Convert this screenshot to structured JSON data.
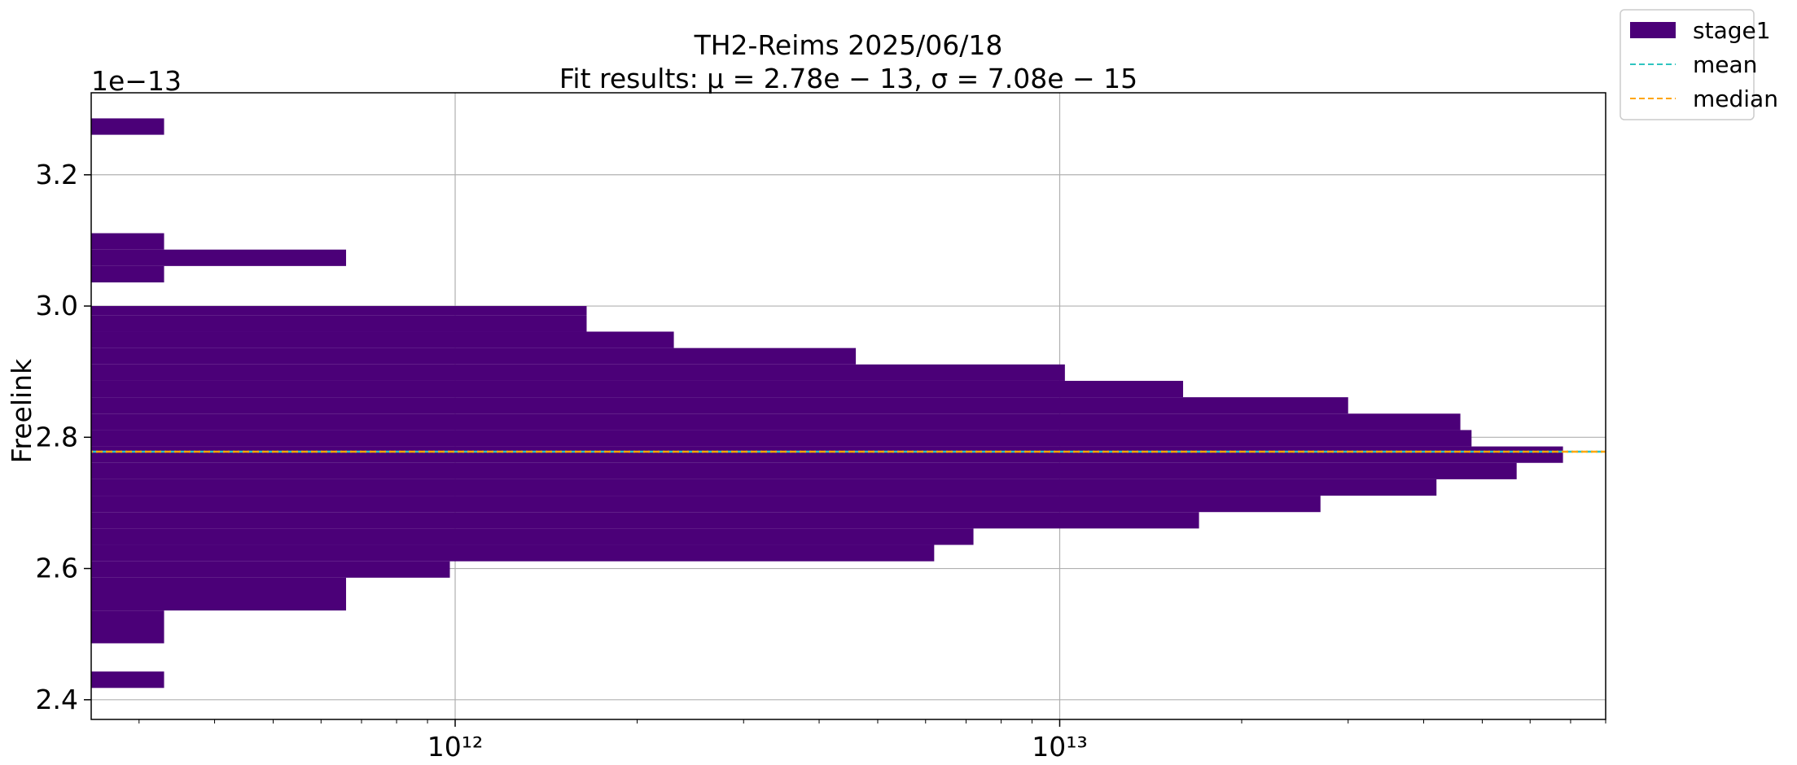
{
  "chart_data": {
    "type": "bar",
    "orientation": "horizontal",
    "title_line1": "TH2-Reims 2025/06/18",
    "title_line2": "Fit results: μ = 2.78e − 13,  σ = 7.08e − 15",
    "ylabel": "Freelink",
    "y_offset_label": "1e−13",
    "xscale": "log",
    "xlim": [
      250000000000,
      80000000000000
    ],
    "ylim": [
      2.37,
      3.325
    ],
    "yticks": [
      "2.4",
      "2.6",
      "2.8",
      "3.0",
      "3.2"
    ],
    "ytick_values": [
      2.4,
      2.6,
      2.8,
      3.0,
      3.2
    ],
    "xticks": [
      "10¹²",
      "10¹³"
    ],
    "xtick_values": [
      1000000000000,
      10000000000000
    ],
    "grid": true,
    "legend_position": "outside-top-right",
    "series": [
      {
        "name": "stage1",
        "color": "#4b0078",
        "bins": [
          {
            "y0": 2.418,
            "y1": 2.443,
            "x": 330000000000
          },
          {
            "y0": 2.486,
            "y1": 2.536,
            "x": 330000000000
          },
          {
            "y0": 2.536,
            "y1": 2.586,
            "x": 660000000000
          },
          {
            "y0": 2.586,
            "y1": 2.611,
            "x": 980000000000
          },
          {
            "y0": 2.611,
            "y1": 2.636,
            "x": 6200000000000
          },
          {
            "y0": 2.636,
            "y1": 2.661,
            "x": 7200000000000
          },
          {
            "y0": 2.661,
            "y1": 2.686,
            "x": 17000000000000
          },
          {
            "y0": 2.686,
            "y1": 2.711,
            "x": 27000000000000
          },
          {
            "y0": 2.711,
            "y1": 2.736,
            "x": 42000000000000
          },
          {
            "y0": 2.736,
            "y1": 2.761,
            "x": 57000000000000
          },
          {
            "y0": 2.761,
            "y1": 2.786,
            "x": 68000000000000
          },
          {
            "y0": 2.786,
            "y1": 2.811,
            "x": 48000000000000
          },
          {
            "y0": 2.811,
            "y1": 2.836,
            "x": 46000000000000
          },
          {
            "y0": 2.836,
            "y1": 2.861,
            "x": 30000000000000
          },
          {
            "y0": 2.861,
            "y1": 2.886,
            "x": 16000000000000
          },
          {
            "y0": 2.886,
            "y1": 2.911,
            "x": 10200000000000
          },
          {
            "y0": 2.911,
            "y1": 2.936,
            "x": 4600000000000
          },
          {
            "y0": 2.936,
            "y1": 2.961,
            "x": 2300000000000
          },
          {
            "y0": 2.961,
            "y1": 2.986,
            "x": 1650000000000
          },
          {
            "y0": 2.986,
            "y1": 3.0,
            "x": 1650000000000
          },
          {
            "y0": 3.036,
            "y1": 3.061,
            "x": 330000000000
          },
          {
            "y0": 3.061,
            "y1": 3.086,
            "x": 660000000000
          },
          {
            "y0": 3.086,
            "y1": 3.111,
            "x": 330000000000
          },
          {
            "y0": 3.261,
            "y1": 3.286,
            "x": 330000000000
          }
        ]
      }
    ],
    "lines": [
      {
        "name": "mean",
        "y": 2.778,
        "color": "#2ec4c0",
        "style": "dashed"
      },
      {
        "name": "median",
        "y": 2.778,
        "color": "#ffa500",
        "style": "dashed"
      }
    ]
  }
}
